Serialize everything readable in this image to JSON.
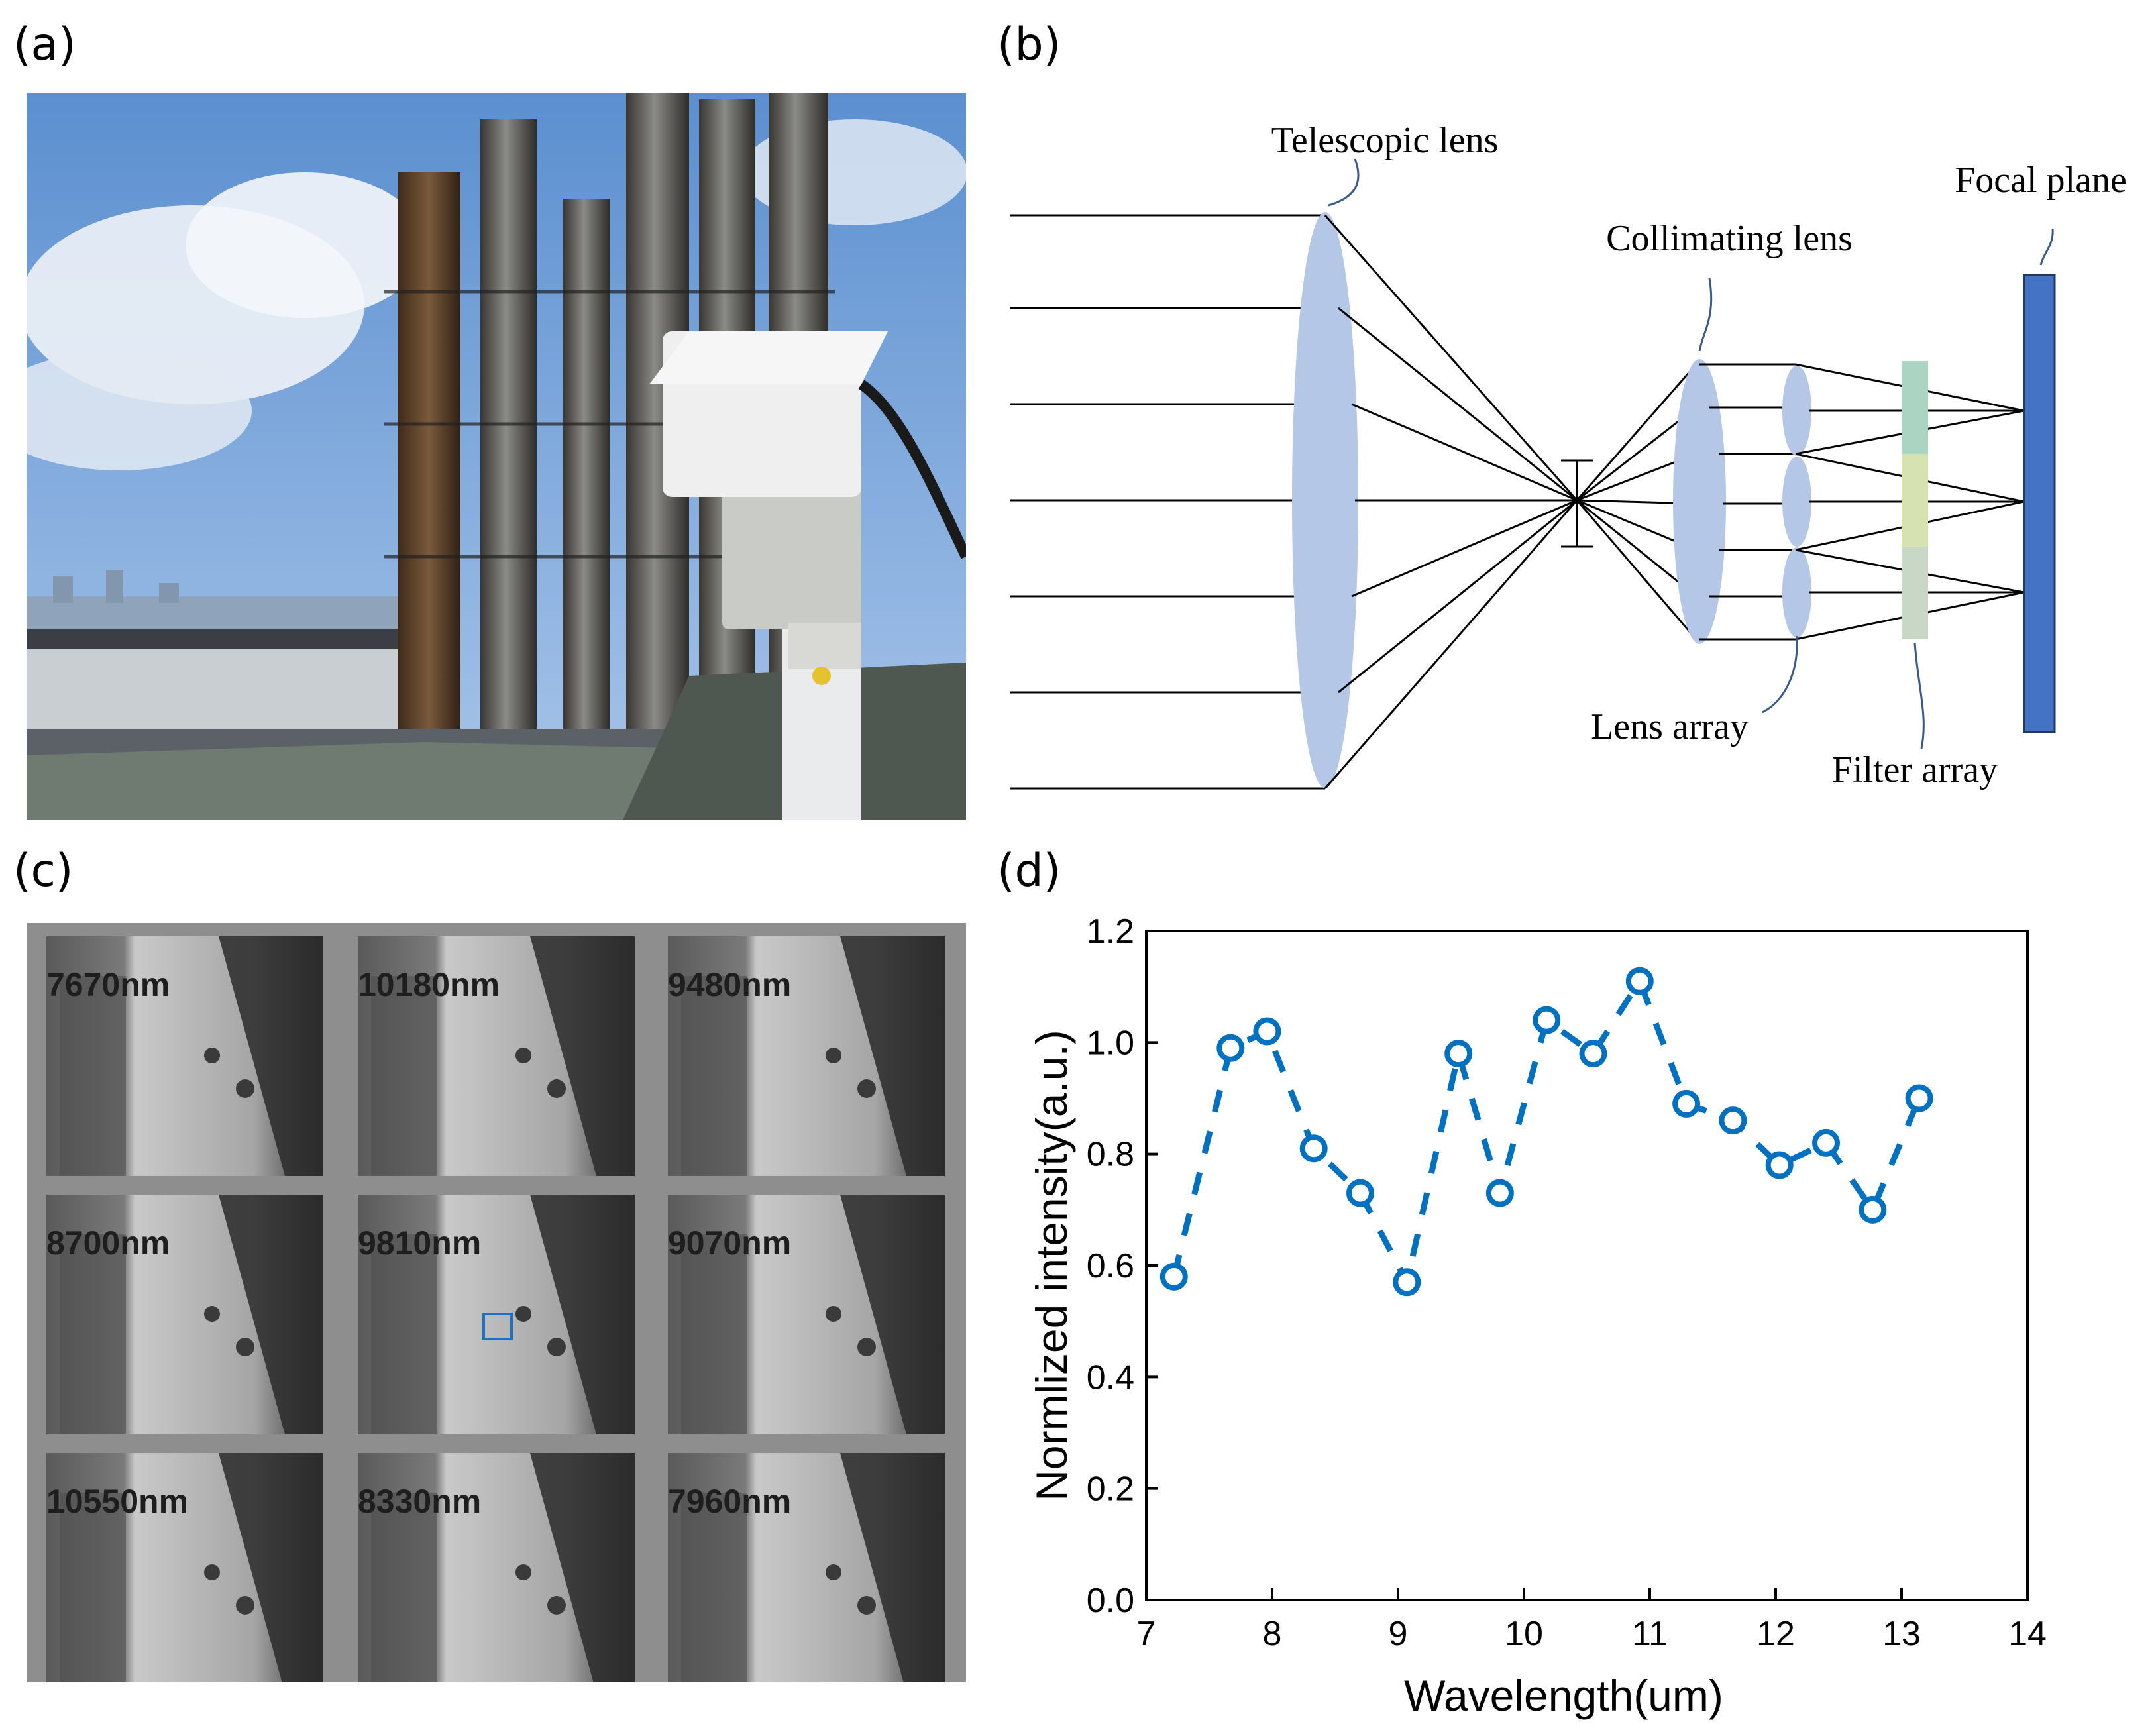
{
  "panels": {
    "a": {
      "label": "(a)"
    },
    "b": {
      "label": "(b)",
      "labels": {
        "telescopic": "Telescopic lens",
        "collimating": "Collimating lens",
        "focal": "Focal plane",
        "lens_array": "Lens array",
        "filter_array": "Filter array"
      }
    },
    "c": {
      "label": "(c)",
      "tiles": [
        "7670nm",
        "10180nm",
        "9480nm",
        "8700nm",
        "9810nm",
        "9070nm",
        "10550nm",
        "8330nm",
        "7960nm"
      ]
    },
    "d": {
      "label": "(d)"
    }
  },
  "colors": {
    "lens": "#b4c7e7",
    "focal_plane": "#4472c4",
    "filter_top": "#a9d5c2",
    "filter_mid": "#d6e3b1",
    "filter_bot": "#c9d8c6",
    "series": "#0070c0",
    "sky": "#7fa8d8"
  },
  "chart_data": {
    "type": "line",
    "xlabel": "Wavelength(um)",
    "ylabel": "Normlized intensity(a.u.)",
    "xlim": [
      7,
      14
    ],
    "ylim": [
      0.0,
      1.2
    ],
    "xticks": [
      "7",
      "8",
      "9",
      "10",
      "11",
      "12",
      "13",
      "14"
    ],
    "yticks": [
      "0.0",
      "0.2",
      "0.4",
      "0.6",
      "0.8",
      "1.0",
      "1.2"
    ],
    "line_style": "dashed",
    "marker": "open-circle",
    "series": [
      {
        "x": [
          7.22,
          7.67,
          7.96,
          8.33,
          8.7,
          9.07,
          9.48,
          9.81,
          10.18,
          10.55,
          10.92,
          11.29,
          11.66,
          12.03,
          12.4,
          12.77,
          13.14
        ],
        "values": [
          0.58,
          0.99,
          1.02,
          0.81,
          0.73,
          0.57,
          0.98,
          0.73,
          1.04,
          0.98,
          1.11,
          0.89,
          0.86,
          0.78,
          0.82,
          0.7,
          0.9
        ]
      }
    ]
  }
}
